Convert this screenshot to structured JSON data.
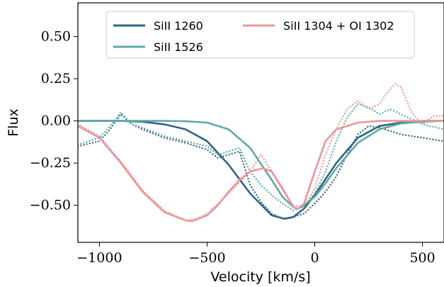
{
  "chart_data": {
    "type": "line",
    "title": "",
    "xlabel": "Velocity [km/s]",
    "ylabel": "Flux",
    "xlim": [
      -1100,
      600
    ],
    "ylim": [
      -0.72,
      0.7
    ],
    "xticks": [
      -1000,
      -500,
      0,
      500
    ],
    "yticks": [
      0.5,
      0.25,
      0.0,
      -0.25,
      -0.5
    ],
    "xtick_labels": [
      "−1000",
      "−500",
      "0",
      "500"
    ],
    "ytick_labels": [
      "0.50",
      "0.25",
      "0.00",
      "−0.25",
      "−0.50"
    ],
    "grid": false,
    "legend_position": "top",
    "series": [
      {
        "name": "SiII 1260",
        "color": "#2f6587",
        "style": "solid",
        "x": [
          -1100,
          -900,
          -800,
          -700,
          -600,
          -500,
          -400,
          -300,
          -200,
          -140,
          -100,
          -50,
          0,
          100,
          200,
          300,
          400,
          500,
          600
        ],
        "y": [
          0.0,
          0.0,
          -0.005,
          -0.02,
          -0.05,
          -0.12,
          -0.26,
          -0.43,
          -0.56,
          -0.58,
          -0.57,
          -0.52,
          -0.44,
          -0.25,
          -0.1,
          -0.03,
          -0.01,
          0.0,
          0.0
        ]
      },
      {
        "name": "SiII 1526",
        "color": "#5fa9a8",
        "style": "solid",
        "x": [
          -1100,
          -700,
          -600,
          -500,
          -400,
          -300,
          -200,
          -150,
          -100,
          -80,
          -60,
          0,
          50,
          100,
          200,
          300,
          400,
          500,
          600
        ],
        "y": [
          0.0,
          0.0,
          -0.002,
          -0.01,
          -0.05,
          -0.16,
          -0.35,
          -0.45,
          -0.51,
          -0.52,
          -0.51,
          -0.45,
          -0.37,
          -0.28,
          -0.13,
          -0.05,
          -0.015,
          -0.005,
          0.0
        ]
      },
      {
        "name": "SiII 1304 + OI 1302",
        "color": "#e89898",
        "style": "solid",
        "x": [
          -1100,
          -1000,
          -900,
          -800,
          -700,
          -600,
          -570,
          -500,
          -450,
          -400,
          -350,
          -300,
          -240,
          -200,
          -150,
          -100,
          -80,
          -50,
          0,
          50,
          100,
          200,
          300,
          400,
          600
        ],
        "y": [
          -0.03,
          -0.1,
          -0.25,
          -0.42,
          -0.54,
          -0.59,
          -0.595,
          -0.56,
          -0.5,
          -0.42,
          -0.35,
          -0.3,
          -0.28,
          -0.3,
          -0.4,
          -0.51,
          -0.52,
          -0.49,
          -0.3,
          -0.12,
          -0.05,
          -0.01,
          0.0,
          0.0,
          0.0
        ]
      },
      {
        "name": "",
        "color": "#2f6587",
        "style": "dotted",
        "x": [
          -1100,
          -1000,
          -950,
          -900,
          -850,
          -800,
          -700,
          -600,
          -500,
          -450,
          -400,
          -350,
          -300,
          -250,
          -200,
          -150,
          -100,
          -50,
          0,
          50,
          100,
          150,
          200,
          250,
          300,
          400,
          500,
          600
        ],
        "y": [
          -0.15,
          -0.12,
          -0.05,
          0.04,
          -0.02,
          -0.05,
          -0.1,
          -0.13,
          -0.17,
          -0.22,
          -0.2,
          -0.18,
          -0.38,
          -0.48,
          -0.55,
          -0.58,
          -0.57,
          -0.55,
          -0.49,
          -0.42,
          -0.33,
          -0.2,
          -0.08,
          -0.03,
          -0.04,
          -0.08,
          -0.1,
          -0.12
        ]
      },
      {
        "name": "",
        "color": "#5fa9a8",
        "style": "dotted",
        "x": [
          -1100,
          -1000,
          -950,
          -900,
          -850,
          -800,
          -700,
          -600,
          -500,
          -450,
          -400,
          -350,
          -300,
          -250,
          -200,
          -150,
          -100,
          -80,
          -50,
          0,
          50,
          100,
          150,
          200,
          250,
          300,
          350,
          400,
          500,
          600
        ],
        "y": [
          -0.14,
          -0.1,
          -0.03,
          0.05,
          -0.02,
          -0.04,
          -0.09,
          -0.12,
          -0.15,
          -0.2,
          -0.18,
          -0.16,
          -0.3,
          -0.38,
          -0.44,
          -0.49,
          -0.53,
          -0.52,
          -0.5,
          -0.43,
          -0.3,
          -0.12,
          0.02,
          0.1,
          0.08,
          0.04,
          0.07,
          0.04,
          -0.02,
          -0.05
        ]
      },
      {
        "name": "",
        "color": "#e89898",
        "style": "dotted",
        "x": [
          -1100,
          -1000,
          -900,
          -800,
          -700,
          -600,
          -550,
          -500,
          -400,
          -300,
          -250,
          -200,
          -150,
          -100,
          -50,
          0,
          50,
          100,
          150,
          200,
          250,
          300,
          350,
          375,
          400,
          450,
          500,
          550,
          600
        ],
        "y": [
          -0.02,
          -0.09,
          -0.24,
          -0.41,
          -0.53,
          -0.59,
          -0.58,
          -0.55,
          -0.43,
          -0.3,
          -0.2,
          -0.3,
          -0.41,
          -0.5,
          -0.51,
          -0.4,
          -0.2,
          -0.05,
          0.07,
          0.12,
          0.07,
          0.1,
          0.19,
          0.22,
          0.2,
          0.05,
          -0.02,
          0.03,
          0.03
        ]
      }
    ],
    "legend": [
      {
        "name": "SiII 1260",
        "color": "#2f6587"
      },
      {
        "name": "SiII 1304 + OI 1302",
        "color": "#e89898"
      },
      {
        "name": "SiII 1526",
        "color": "#5fa9a8"
      }
    ]
  }
}
